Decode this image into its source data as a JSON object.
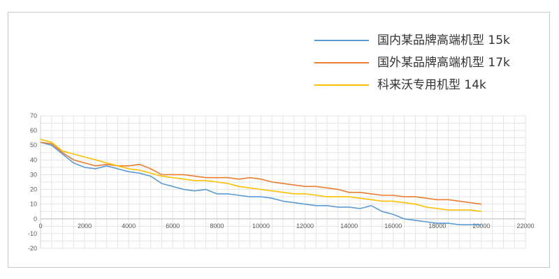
{
  "chart_data": {
    "type": "line",
    "title": "",
    "xlabel": "",
    "ylabel": "",
    "xlim": [
      0,
      22000
    ],
    "ylim": [
      -20,
      70
    ],
    "x_ticks": [
      0,
      2000,
      4000,
      6000,
      8000,
      10000,
      12000,
      14000,
      16000,
      18000,
      20000,
      22000
    ],
    "y_ticks": [
      70,
      60,
      50,
      40,
      30,
      20,
      10,
      0,
      -10,
      -20
    ],
    "grid": true,
    "legend_position": "top-right",
    "series": [
      {
        "name": "国内某品牌高端机型 15k",
        "color": "#5b9bd5",
        "x": [
          0,
          500,
          1000,
          1500,
          2000,
          2500,
          3000,
          3500,
          4000,
          4500,
          5000,
          5500,
          6000,
          6500,
          7000,
          7500,
          8000,
          8500,
          9000,
          9500,
          10000,
          10500,
          11000,
          11500,
          12000,
          12500,
          13000,
          13500,
          14000,
          14500,
          15000,
          15500,
          16000,
          16500,
          17000,
          17500,
          18000,
          18500,
          19000,
          19500,
          20000
        ],
        "y": [
          52,
          50,
          44,
          38,
          35,
          34,
          36,
          34,
          32,
          31,
          29,
          24,
          22,
          20,
          19,
          20,
          17,
          17,
          16,
          15,
          15,
          14,
          12,
          11,
          10,
          9,
          9,
          8,
          8,
          7,
          9,
          5,
          3,
          0,
          -1,
          -2,
          -3,
          -3,
          -4,
          -4,
          -4
        ]
      },
      {
        "name": "国外某品牌高端机型 17k",
        "color": "#ed7d31",
        "x": [
          0,
          500,
          1000,
          1500,
          2000,
          2500,
          3000,
          3500,
          4000,
          4500,
          5000,
          5500,
          6000,
          6500,
          7000,
          7500,
          8000,
          8500,
          9000,
          9500,
          10000,
          10500,
          11000,
          11500,
          12000,
          12500,
          13000,
          13500,
          14000,
          14500,
          15000,
          15500,
          16000,
          16500,
          17000,
          17500,
          18000,
          18500,
          19000,
          19500,
          20000
        ],
        "y": [
          52,
          51,
          45,
          40,
          38,
          36,
          37,
          36,
          36,
          37,
          34,
          30,
          30,
          30,
          29,
          28,
          28,
          28,
          27,
          28,
          27,
          25,
          24,
          23,
          22,
          22,
          21,
          20,
          18,
          18,
          17,
          16,
          16,
          15,
          15,
          14,
          13,
          13,
          12,
          11,
          10
        ]
      },
      {
        "name": "科来沃专用机型 14k",
        "color": "#ffc000",
        "x": [
          0,
          500,
          1000,
          1500,
          2000,
          2500,
          3000,
          3500,
          4000,
          4500,
          5000,
          5500,
          6000,
          6500,
          7000,
          7500,
          8000,
          8500,
          9000,
          9500,
          10000,
          10500,
          11000,
          11500,
          12000,
          12500,
          13000,
          13500,
          14000,
          14500,
          15000,
          15500,
          16000,
          16500,
          17000,
          17500,
          18000,
          18500,
          19000,
          19500,
          20000
        ],
        "y": [
          54,
          52,
          46,
          44,
          42,
          40,
          38,
          36,
          34,
          33,
          31,
          29,
          28,
          27,
          26,
          26,
          25,
          24,
          22,
          21,
          20,
          19,
          18,
          17,
          17,
          16,
          15,
          15,
          15,
          14,
          13,
          12,
          12,
          11,
          10,
          8,
          7,
          6,
          6,
          6,
          5
        ]
      }
    ]
  }
}
